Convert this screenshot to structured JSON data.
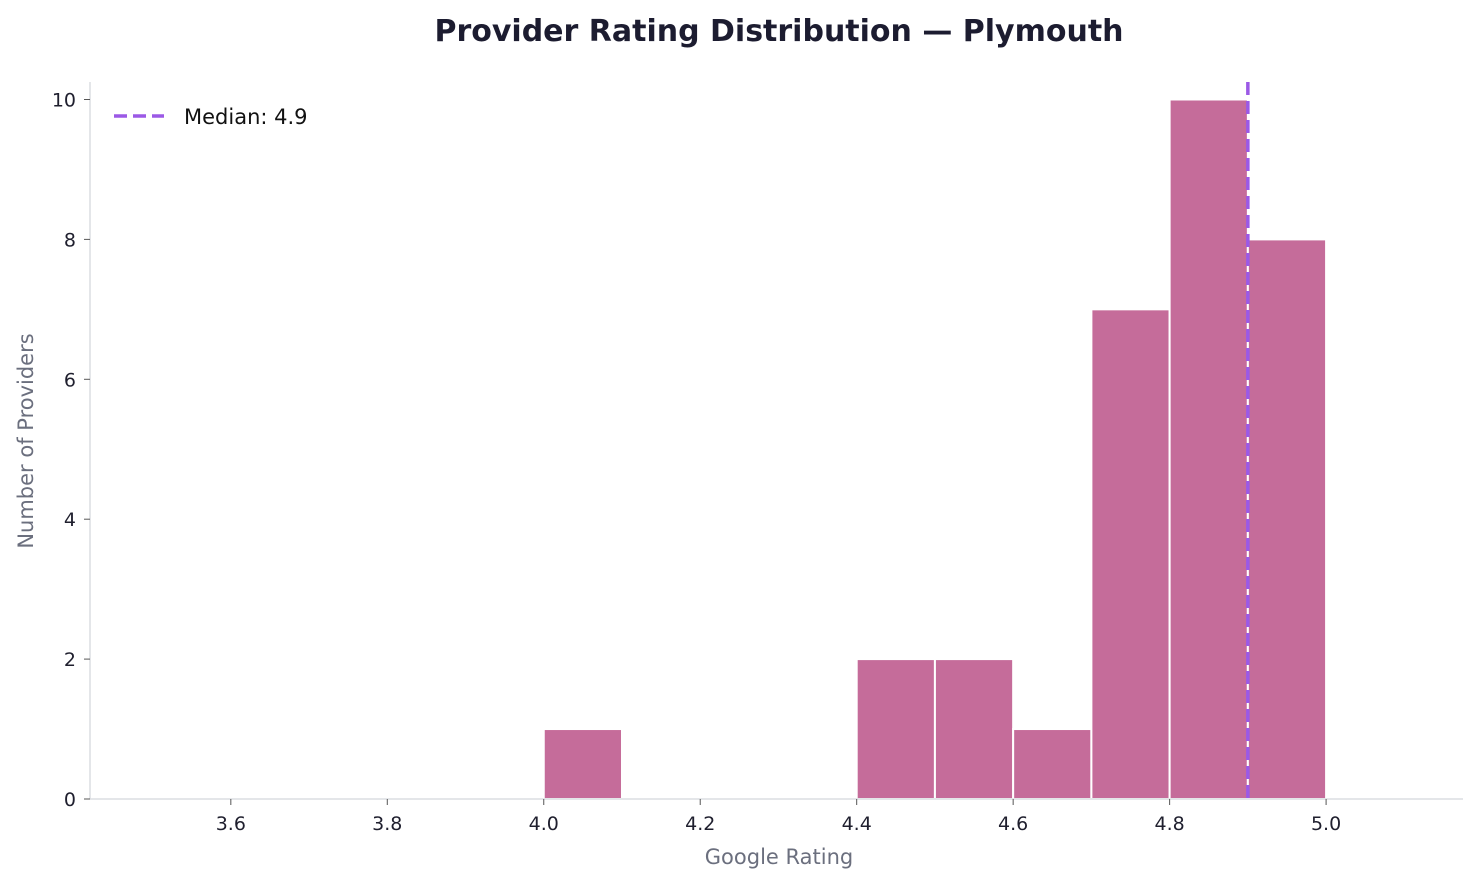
{
  "chart_data": {
    "type": "histogram",
    "title": "Provider Rating Distribution — Plymouth",
    "xlabel": "Google Rating",
    "ylabel": "Number of Providers",
    "xlim": [
      3.42,
      5.175
    ],
    "ylim": [
      0,
      10.25
    ],
    "xticks": [
      "3.6",
      "3.8",
      "4.0",
      "4.2",
      "4.4",
      "4.6",
      "4.8",
      "5.0"
    ],
    "yticks": [
      "0",
      "2",
      "4",
      "6",
      "8",
      "10"
    ],
    "bins": [
      {
        "start": 4.0,
        "end": 4.1,
        "count": 1
      },
      {
        "start": 4.4,
        "end": 4.5,
        "count": 2
      },
      {
        "start": 4.5,
        "end": 4.6,
        "count": 2
      },
      {
        "start": 4.6,
        "end": 4.7,
        "count": 1
      },
      {
        "start": 4.7,
        "end": 4.8,
        "count": 7
      },
      {
        "start": 4.8,
        "end": 4.9,
        "count": 10
      },
      {
        "start": 4.9,
        "end": 5.0,
        "count": 8
      }
    ],
    "median": 4.9,
    "legend": {
      "label": "Median: 4.9",
      "placement": "top-left"
    },
    "grid": false,
    "colors": {
      "bar": "#c56c9a",
      "median": "#9b59e6"
    }
  }
}
